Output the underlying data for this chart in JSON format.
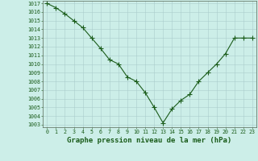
{
  "x": [
    0,
    1,
    2,
    3,
    4,
    5,
    6,
    7,
    8,
    9,
    10,
    11,
    12,
    13,
    14,
    15,
    16,
    17,
    18,
    19,
    20,
    21,
    22,
    23
  ],
  "y": [
    1017,
    1016.5,
    1015.8,
    1015,
    1014.2,
    1013,
    1011.8,
    1010.5,
    1010,
    1008.5,
    1008,
    1006.7,
    1005,
    1003.2,
    1004.8,
    1005.8,
    1006.5,
    1008,
    1009,
    1010,
    1011.2,
    1013,
    1013,
    1013
  ],
  "line_color": "#1a5c1a",
  "marker": "+",
  "bg_color": "#cceee8",
  "grid_color": "#aacccc",
  "xlabel": "Graphe pression niveau de la mer (hPa)",
  "ylim_min": 1003,
  "ylim_max": 1017,
  "xlim_min": -0.5,
  "xlim_max": 23.5,
  "xlabel_fontsize": 6.5,
  "tick_fontsize": 4.8,
  "line_width": 0.8,
  "marker_size": 4,
  "marker_edge_width": 0.8
}
